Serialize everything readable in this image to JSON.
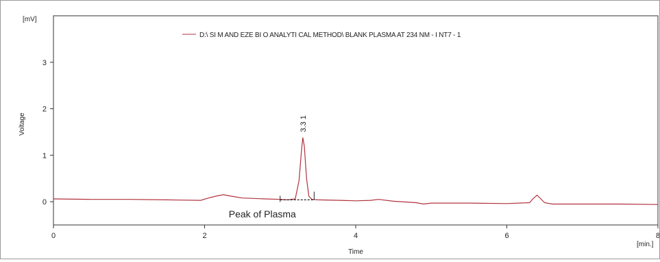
{
  "colors": {
    "trace": "#b0303c",
    "legend_text": "#c4152a",
    "axis": "#333333",
    "baseline": "#222222"
  },
  "chart_data": {
    "type": "line",
    "title": "",
    "legend": {
      "placement": "top-center",
      "entries": [
        "D:\\ SI M AND EZE BI O ANALYTI CAL METHOD\\ BLANK PLASMA AT 234 NM - I NT7 - 1"
      ]
    },
    "xlabel": "Time",
    "xunit": "[min.]",
    "ylabel": "Voltage",
    "yunit": "[mV]",
    "xlim": [
      0,
      8
    ],
    "ylim": [
      -0.5,
      4
    ],
    "xticks": [
      0,
      2,
      4,
      6,
      8
    ],
    "xtick_labels": [
      "0",
      "2",
      "4",
      "6",
      "8"
    ],
    "yticks": [
      0,
      1,
      2,
      3
    ],
    "ytick_labels": [
      "0",
      "1",
      "2",
      "3"
    ],
    "grid": false,
    "series": [
      {
        "name": "D:\\ SI M AND EZE BI O ANALYTI CAL METHOD\\ BLANK PLASMA AT 234 NM - I NT7 - 1",
        "x": [
          0,
          0.5,
          1.0,
          1.5,
          1.95,
          2.05,
          2.15,
          2.25,
          2.35,
          2.5,
          2.8,
          3.0,
          3.1,
          3.2,
          3.25,
          3.28,
          3.3,
          3.32,
          3.35,
          3.38,
          3.42,
          3.5,
          3.8,
          4.0,
          4.2,
          4.3,
          4.5,
          4.8,
          4.9,
          5.0,
          5.5,
          6.0,
          6.3,
          6.35,
          6.4,
          6.45,
          6.5,
          6.6,
          7.0,
          7.5,
          8.0
        ],
        "y": [
          0.06,
          0.05,
          0.05,
          0.04,
          0.03,
          0.08,
          0.12,
          0.15,
          0.12,
          0.08,
          0.06,
          0.05,
          0.04,
          0.06,
          0.45,
          1.05,
          1.38,
          1.2,
          0.5,
          0.12,
          0.05,
          0.04,
          0.03,
          0.02,
          0.03,
          0.05,
          0.01,
          -0.02,
          -0.05,
          -0.03,
          -0.03,
          -0.04,
          -0.02,
          0.07,
          0.14,
          0.06,
          -0.02,
          -0.05,
          -0.05,
          -0.05,
          -0.06
        ]
      }
    ],
    "peak_labels": [
      {
        "x": 3.3,
        "y": 1.38,
        "text": "3.3 1"
      }
    ],
    "baseline_segment": {
      "x_start": 3.0,
      "x_end": 3.45,
      "y": 0.04
    },
    "annotations": [
      {
        "text": "Peak of Plasma",
        "x": 3.0,
        "y": -0.22
      }
    ]
  }
}
